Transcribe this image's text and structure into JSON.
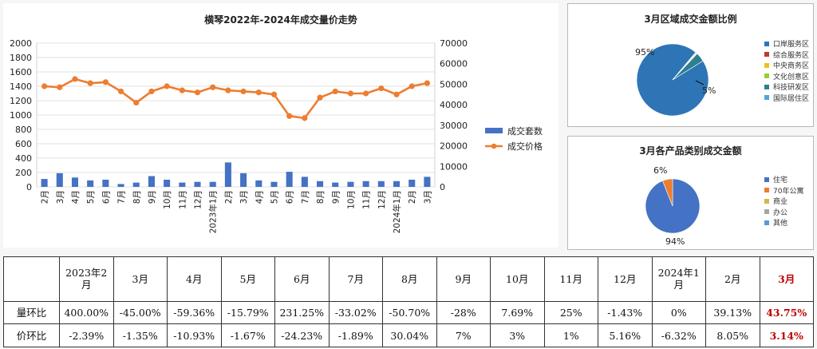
{
  "chart_data": [
    {
      "type": "bar+line",
      "title": "横琴2022年-2024年成交量价走势",
      "categories": [
        "2月",
        "3月",
        "4月",
        "5月",
        "6月",
        "7月",
        "8月",
        "9月",
        "10月",
        "11月",
        "12月",
        "2023年1月",
        "2月",
        "3月",
        "4月",
        "5月",
        "6月",
        "7月",
        "8月",
        "9月",
        "10月",
        "11月",
        "12月",
        "2024年1月",
        "2月",
        "3月"
      ],
      "series": [
        {
          "name": "成交套数",
          "axis": "left",
          "kind": "bar",
          "color": "#4472c4",
          "values": [
            110,
            190,
            130,
            90,
            100,
            40,
            60,
            150,
            100,
            60,
            70,
            70,
            340,
            190,
            90,
            70,
            210,
            140,
            80,
            60,
            70,
            80,
            80,
            80,
            100,
            140
          ]
        },
        {
          "name": "成交价格",
          "axis": "right",
          "kind": "line",
          "color": "#ed7d31",
          "values": [
            49000,
            48500,
            52500,
            50500,
            51000,
            46500,
            41000,
            46500,
            49000,
            47000,
            46000,
            48500,
            47000,
            46500,
            46000,
            45000,
            34500,
            33500,
            43500,
            46500,
            45500,
            45500,
            48000,
            45000,
            49000,
            50500
          ]
        }
      ],
      "yleft": {
        "min": 0,
        "max": 2000,
        "ticks": [
          "0",
          "200",
          "400",
          "600",
          "800",
          "1000",
          "1200",
          "1400",
          "1600",
          "1800",
          "2000"
        ]
      },
      "yright": {
        "min": 0,
        "max": 70000,
        "ticks": [
          "0",
          "10000",
          "20000",
          "30000",
          "40000",
          "50000",
          "60000",
          "70000"
        ]
      }
    },
    {
      "type": "pie",
      "title": "3月区域成交金额比例",
      "labels": [
        "口岸服务区",
        "综合服务区",
        "中央商务区",
        "文化创意区",
        "科技研发区",
        "国际居住区"
      ],
      "colors": [
        "#2e75b6",
        "#c0392b",
        "#f0c020",
        "#9acd32",
        "#2f7f8f",
        "#4ea6dc"
      ],
      "values": [
        95,
        0.3,
        0.3,
        0.3,
        4.1,
        0
      ],
      "labels_shown": {
        "big": "95%",
        "small": "5%"
      }
    },
    {
      "type": "pie",
      "title": "3月各产品类别成交金额",
      "labels": [
        "住宅",
        "70年公寓",
        "商业",
        "办公",
        "其他"
      ],
      "colors": [
        "#4472c4",
        "#ed7d31",
        "#d4b54a",
        "#a5a5a5",
        "#5b9bd5"
      ],
      "values": [
        94,
        6,
        0,
        0,
        0
      ],
      "labels_shown": {
        "big": "94%",
        "small": "6%"
      }
    }
  ],
  "table": {
    "header_label": "",
    "months": [
      "2023年2月",
      "3月",
      "4月",
      "5月",
      "6月",
      "7月",
      "8月",
      "9月",
      "10月",
      "11月",
      "12月",
      "2024年1月",
      "2月",
      "3月"
    ],
    "rows": [
      {
        "label": "量环比",
        "values": [
          "400.00%",
          "-45.00%",
          "-59.36%",
          "-15.79%",
          "231.25%",
          "-33.02%",
          "-50.70%",
          "-28%",
          "7.69%",
          "25%",
          "-1.43%",
          "0%",
          "39.13%",
          "43.75%"
        ]
      },
      {
        "label": "价环比",
        "values": [
          "-2.39%",
          "-1.35%",
          "-10.93%",
          "-1.67%",
          "-24.23%",
          "-1.89%",
          "30.04%",
          "7%",
          "3%",
          "1%",
          "5.16%",
          "-6.32%",
          "8.05%",
          "3.14%"
        ]
      }
    ]
  }
}
